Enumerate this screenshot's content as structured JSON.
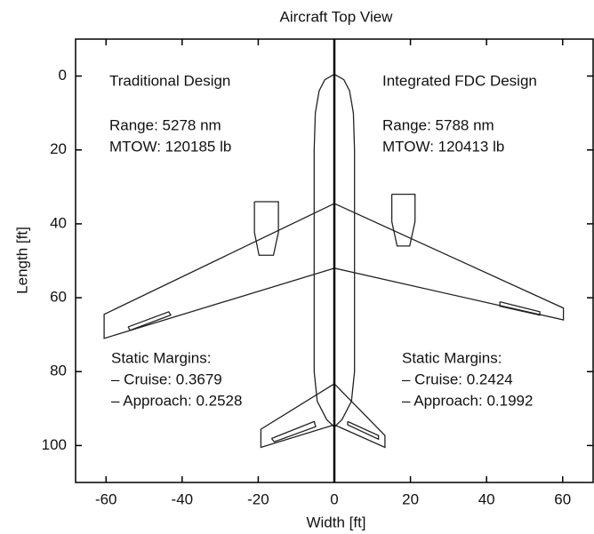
{
  "chart_data": {
    "type": "line",
    "title": "Aircraft Top View",
    "x_label": "Width [ft]",
    "y_label": "Length [ft]",
    "xlim": [
      -68,
      68
    ],
    "ylim": [
      -10,
      110
    ],
    "y_reversed": true,
    "xticks": [
      -60,
      -40,
      -20,
      0,
      20,
      40,
      60
    ],
    "yticks": [
      0,
      20,
      40,
      60,
      80,
      100
    ],
    "center_line": 0,
    "color": "#222222",
    "shapes": [
      {
        "x": [
          0,
          2.5,
          4,
          5,
          5.3,
          5.3,
          4.5,
          2,
          0,
          -2,
          -4.5,
          -5.3,
          -5.3,
          -5,
          -4,
          -2.5,
          0
        ],
        "y": [
          -0.5,
          1,
          4,
          10,
          20,
          80,
          88,
          93,
          95,
          93,
          88,
          80,
          20,
          10,
          4,
          1,
          -0.5
        ]
      },
      {
        "x": [
          0,
          -60.5,
          -60.5,
          0
        ],
        "y": [
          34.5,
          64.5,
          71,
          52
        ]
      },
      {
        "x": [
          0,
          60.2,
          60.2,
          0
        ],
        "y": [
          34.5,
          62.8,
          66,
          52
        ]
      },
      {
        "x": [
          -54.2,
          -43.5,
          -43,
          -53.7,
          -54.2
        ],
        "y": [
          67.9,
          63.8,
          64.7,
          68.8,
          67.9
        ]
      },
      {
        "x": [
          43.5,
          54,
          54,
          43.5,
          43.5
        ],
        "y": [
          61.1,
          63.8,
          64.7,
          62.3,
          61.1
        ]
      },
      {
        "x": [
          -21,
          -14.7,
          -14.7,
          -16,
          -19.8,
          -21,
          -21
        ],
        "y": [
          34,
          34,
          42.3,
          48.5,
          48.5,
          42.3,
          34
        ]
      },
      {
        "x": [
          15.1,
          21.2,
          21.2,
          19.8,
          16.5,
          15.1,
          15.1
        ],
        "y": [
          32,
          32,
          39.4,
          46,
          46,
          39.4,
          32
        ]
      },
      {
        "x": [
          0,
          -19.3,
          -19.3,
          0
        ],
        "y": [
          83.3,
          95.6,
          100.5,
          94.4
        ]
      },
      {
        "x": [
          0,
          13.3,
          13.3,
          0
        ],
        "y": [
          83.3,
          97.3,
          100.5,
          94.4
        ]
      },
      {
        "x": [
          -16.5,
          -5.3,
          -4.9,
          -15.8,
          -16.5
        ],
        "y": [
          98.1,
          93.5,
          94.9,
          99,
          98.1
        ]
      },
      {
        "x": [
          3.5,
          11.6,
          11.6,
          3.5,
          3.5
        ],
        "y": [
          93.5,
          97.3,
          98.3,
          94.4,
          93.5
        ]
      }
    ],
    "annotations": [
      "Traditional Design",
      "Range: 5278 nm",
      "MTOW: 120185 lb",
      "Static Margins:",
      "– Cruise: 0.3679",
      "– Approach: 0.2528",
      "Integrated FDC Design",
      "Range: 5788 nm",
      "MTOW: 120413 lb",
      "Static Margins:",
      "– Cruise: 0.2424",
      "– Approach: 0.1992"
    ]
  }
}
